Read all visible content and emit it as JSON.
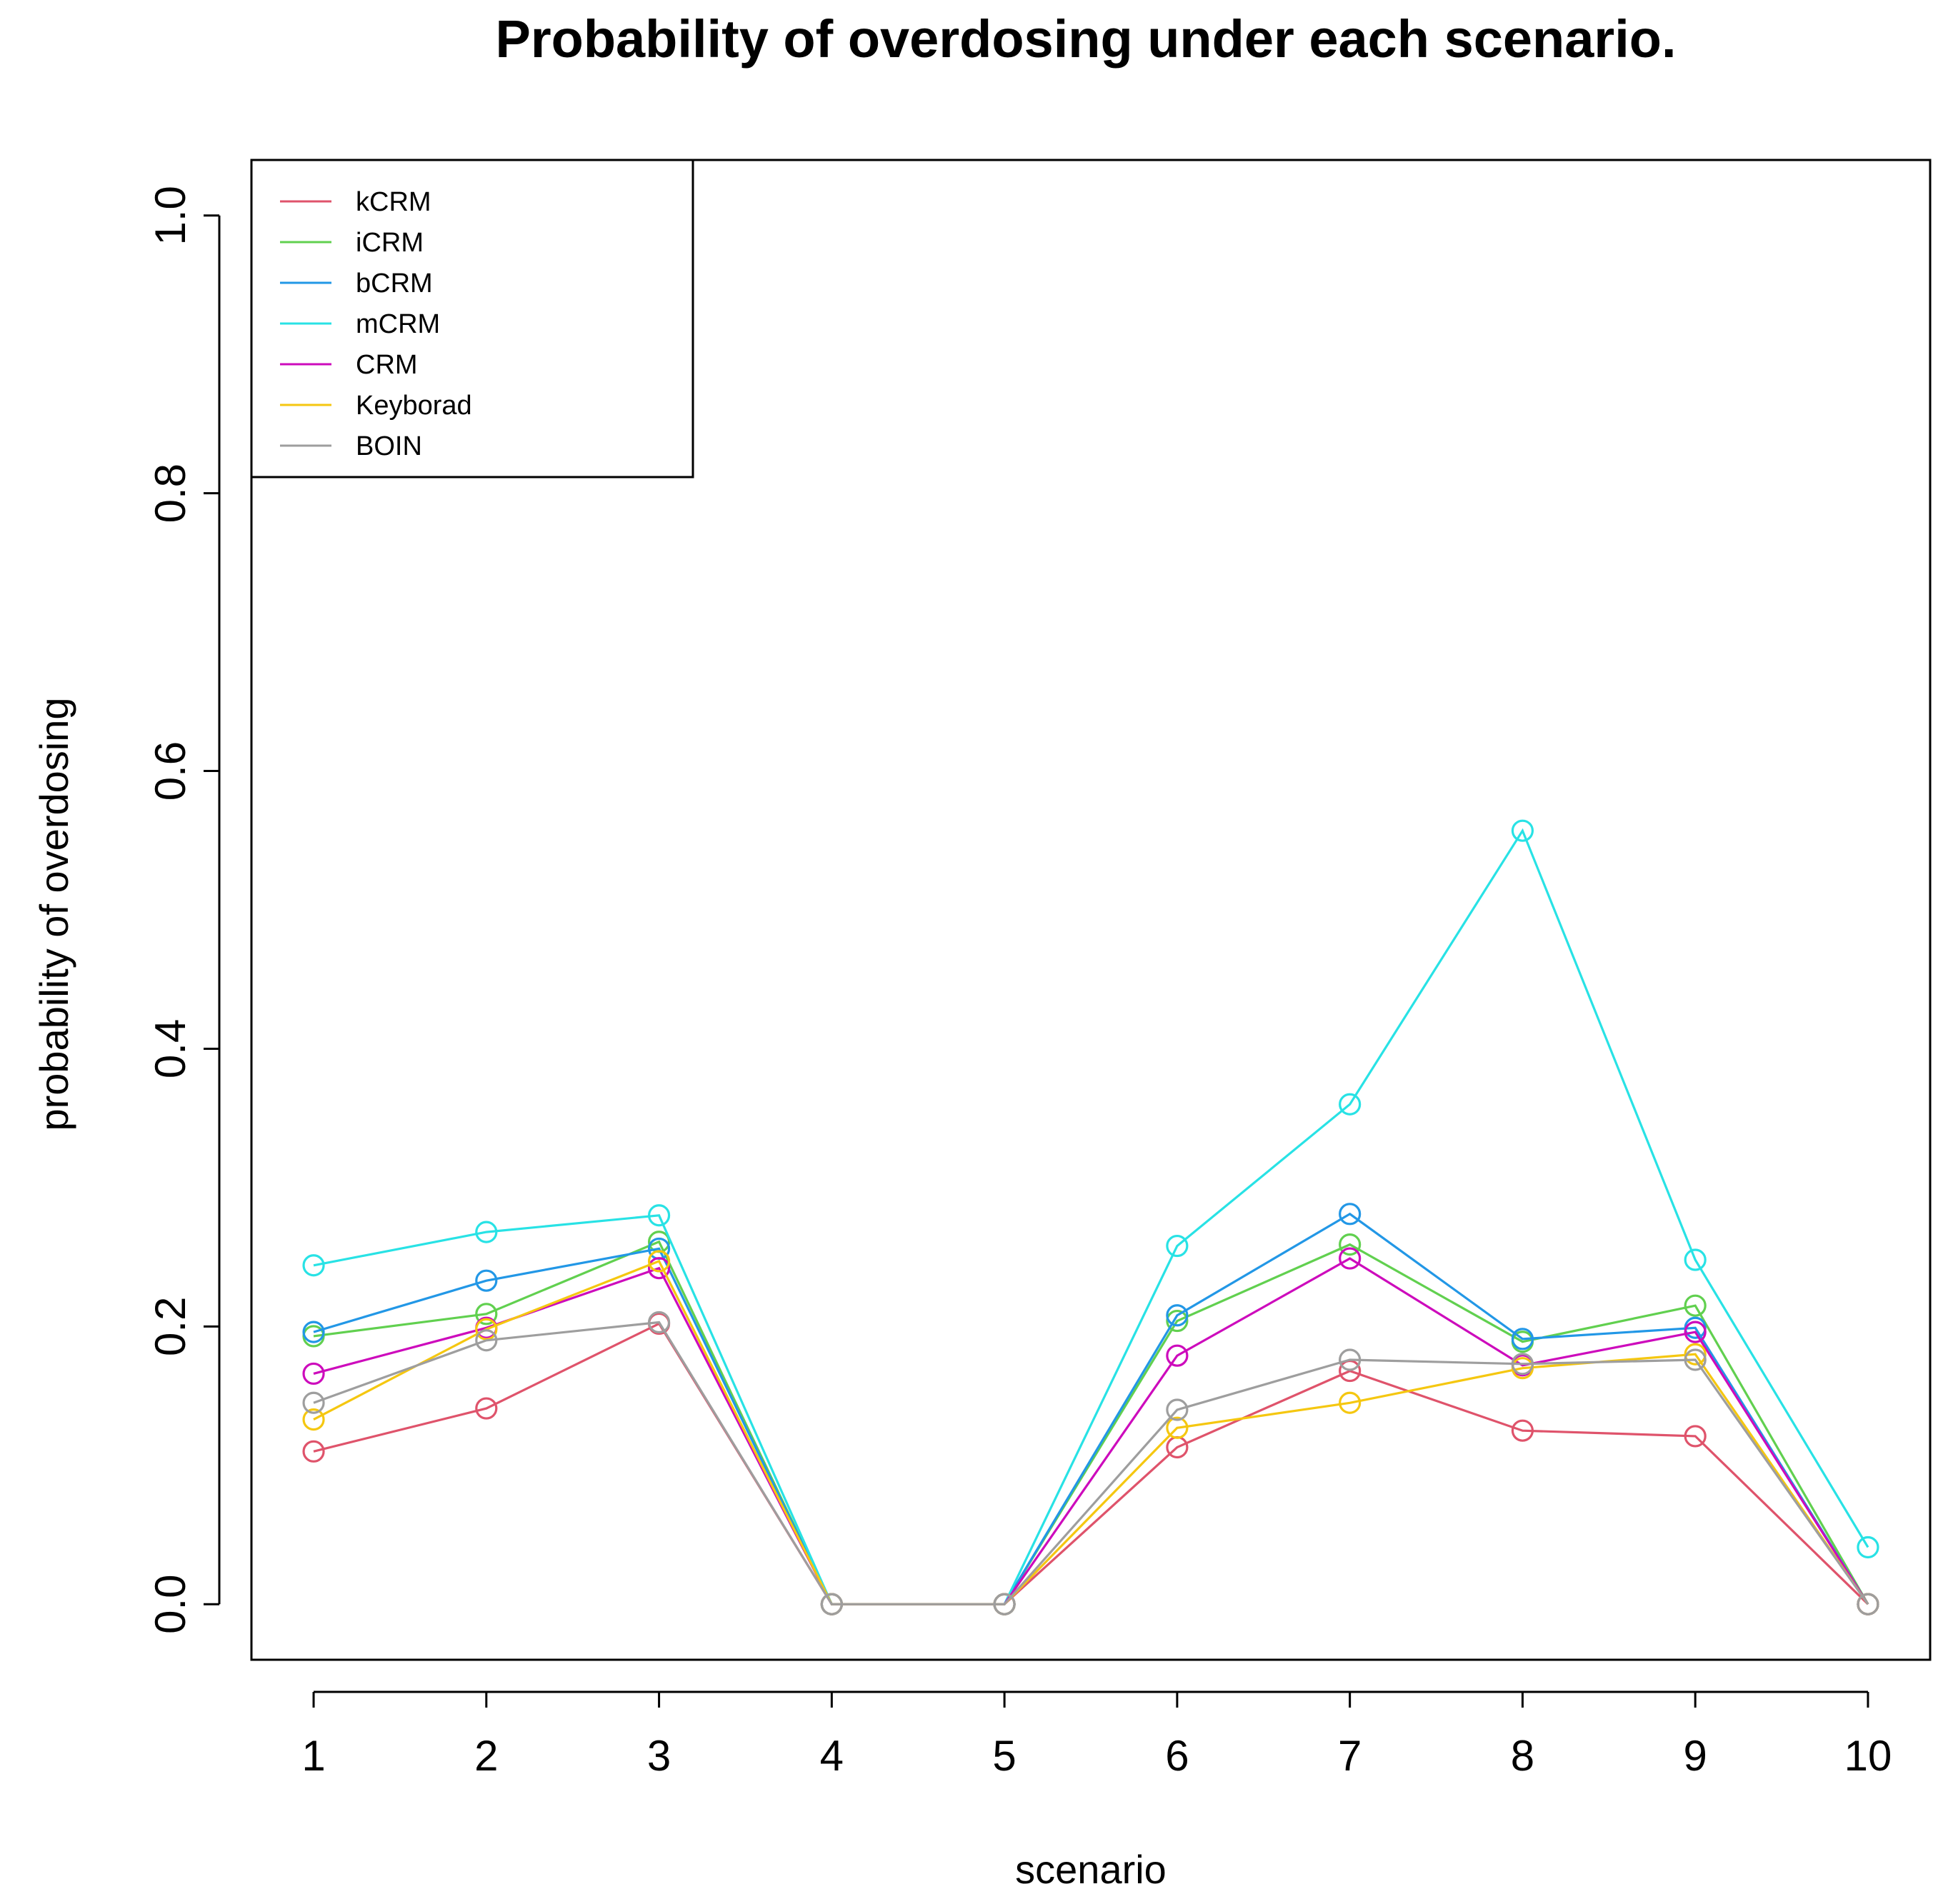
{
  "chart_data": {
    "type": "line",
    "title": "Probability of overdosing under each scenario.",
    "xlabel": "scenario",
    "ylabel": "probability of overdosing",
    "x": [
      1,
      2,
      3,
      4,
      5,
      6,
      7,
      8,
      9,
      10
    ],
    "x_tick_labels": [
      "1",
      "2",
      "3",
      "4",
      "5",
      "6",
      "7",
      "8",
      "9",
      "10"
    ],
    "y_ticks": [
      0.0,
      0.2,
      0.4,
      0.6,
      0.8,
      1.0
    ],
    "y_tick_labels": [
      "0.0",
      "0.2",
      "0.4",
      "0.6",
      "0.8",
      "1.0"
    ],
    "xlim": [
      0.64,
      10.36
    ],
    "ylim": [
      -0.04,
      1.04
    ],
    "grid": false,
    "legend_position": "top-left",
    "series": [
      {
        "name": "kCRM",
        "color": "#df536b",
        "values": [
          0.11,
          0.141,
          0.202,
          0.0,
          0.0,
          0.113,
          0.168,
          0.125,
          0.121,
          0.0
        ]
      },
      {
        "name": "iCRM",
        "color": "#61d04f",
        "values": [
          0.193,
          0.209,
          0.261,
          0.0,
          0.0,
          0.204,
          0.259,
          0.189,
          0.215,
          0.0
        ]
      },
      {
        "name": "bCRM",
        "color": "#2297e6",
        "values": [
          0.196,
          0.233,
          0.256,
          0.0,
          0.0,
          0.208,
          0.281,
          0.191,
          0.199,
          0.0
        ]
      },
      {
        "name": "mCRM",
        "color": "#28e2e5",
        "values": [
          0.244,
          0.268,
          0.28,
          0.0,
          0.0,
          0.258,
          0.36,
          0.557,
          0.248,
          0.041
        ]
      },
      {
        "name": "CRM",
        "color": "#cd0bbc",
        "values": [
          0.166,
          0.199,
          0.242,
          0.0,
          0.0,
          0.179,
          0.249,
          0.172,
          0.196,
          0.0
        ]
      },
      {
        "name": "Keyborad",
        "color": "#f5c710",
        "values": [
          0.133,
          0.198,
          0.247,
          0.0,
          0.0,
          0.127,
          0.145,
          0.17,
          0.18,
          0.0
        ]
      },
      {
        "name": "BOIN",
        "color": "#9e9e9e",
        "values": [
          0.145,
          0.19,
          0.203,
          0.0,
          0.0,
          0.14,
          0.176,
          0.173,
          0.176,
          0.0
        ]
      }
    ]
  }
}
